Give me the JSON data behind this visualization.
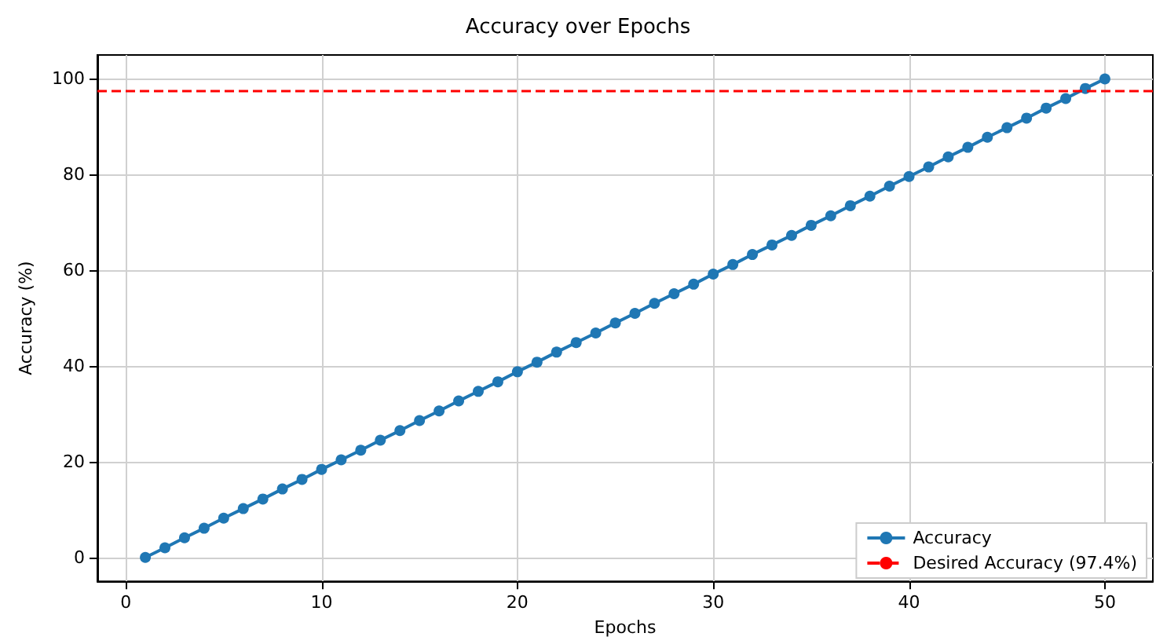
{
  "chart_data": {
    "type": "line",
    "title": "Accuracy over Epochs",
    "xlabel": "Epochs",
    "ylabel": "Accuracy (%)",
    "x": [
      1,
      2,
      3,
      4,
      5,
      6,
      7,
      8,
      9,
      10,
      11,
      12,
      13,
      14,
      15,
      16,
      17,
      18,
      19,
      20,
      21,
      22,
      23,
      24,
      25,
      26,
      27,
      28,
      29,
      30,
      31,
      32,
      33,
      34,
      35,
      36,
      37,
      38,
      39,
      40,
      41,
      42,
      43,
      44,
      45,
      46,
      47,
      48,
      49,
      50
    ],
    "series": [
      {
        "name": "Accuracy",
        "color": "#1f77b4",
        "values": [
          0,
          2.0,
          4.1,
          6.1,
          8.2,
          10.2,
          12.2,
          14.3,
          16.3,
          18.4,
          20.4,
          22.4,
          24.5,
          26.5,
          28.6,
          30.6,
          32.7,
          34.7,
          36.7,
          38.8,
          40.8,
          42.9,
          44.9,
          46.9,
          49.0,
          51.0,
          53.1,
          55.1,
          57.1,
          59.2,
          61.2,
          63.3,
          65.3,
          67.3,
          69.4,
          71.4,
          73.5,
          75.5,
          77.6,
          79.6,
          81.6,
          83.7,
          85.7,
          87.8,
          89.8,
          91.8,
          93.9,
          95.9,
          98.0,
          100
        ]
      }
    ],
    "ref_lines": [
      {
        "axis": "y",
        "value": 97.4,
        "label": "Desired Accuracy (97.4%)",
        "color": "#ff0000",
        "line_style": "dashed"
      }
    ],
    "xlim": [
      -1.45,
      52.45
    ],
    "xticks": [
      0,
      10,
      20,
      30,
      40,
      50
    ],
    "ylim": [
      -5,
      105
    ],
    "yticks": [
      0,
      20,
      40,
      60,
      80,
      100
    ],
    "grid": true,
    "legend": "bottom right",
    "marker": "circle",
    "line_style": "solid"
  }
}
